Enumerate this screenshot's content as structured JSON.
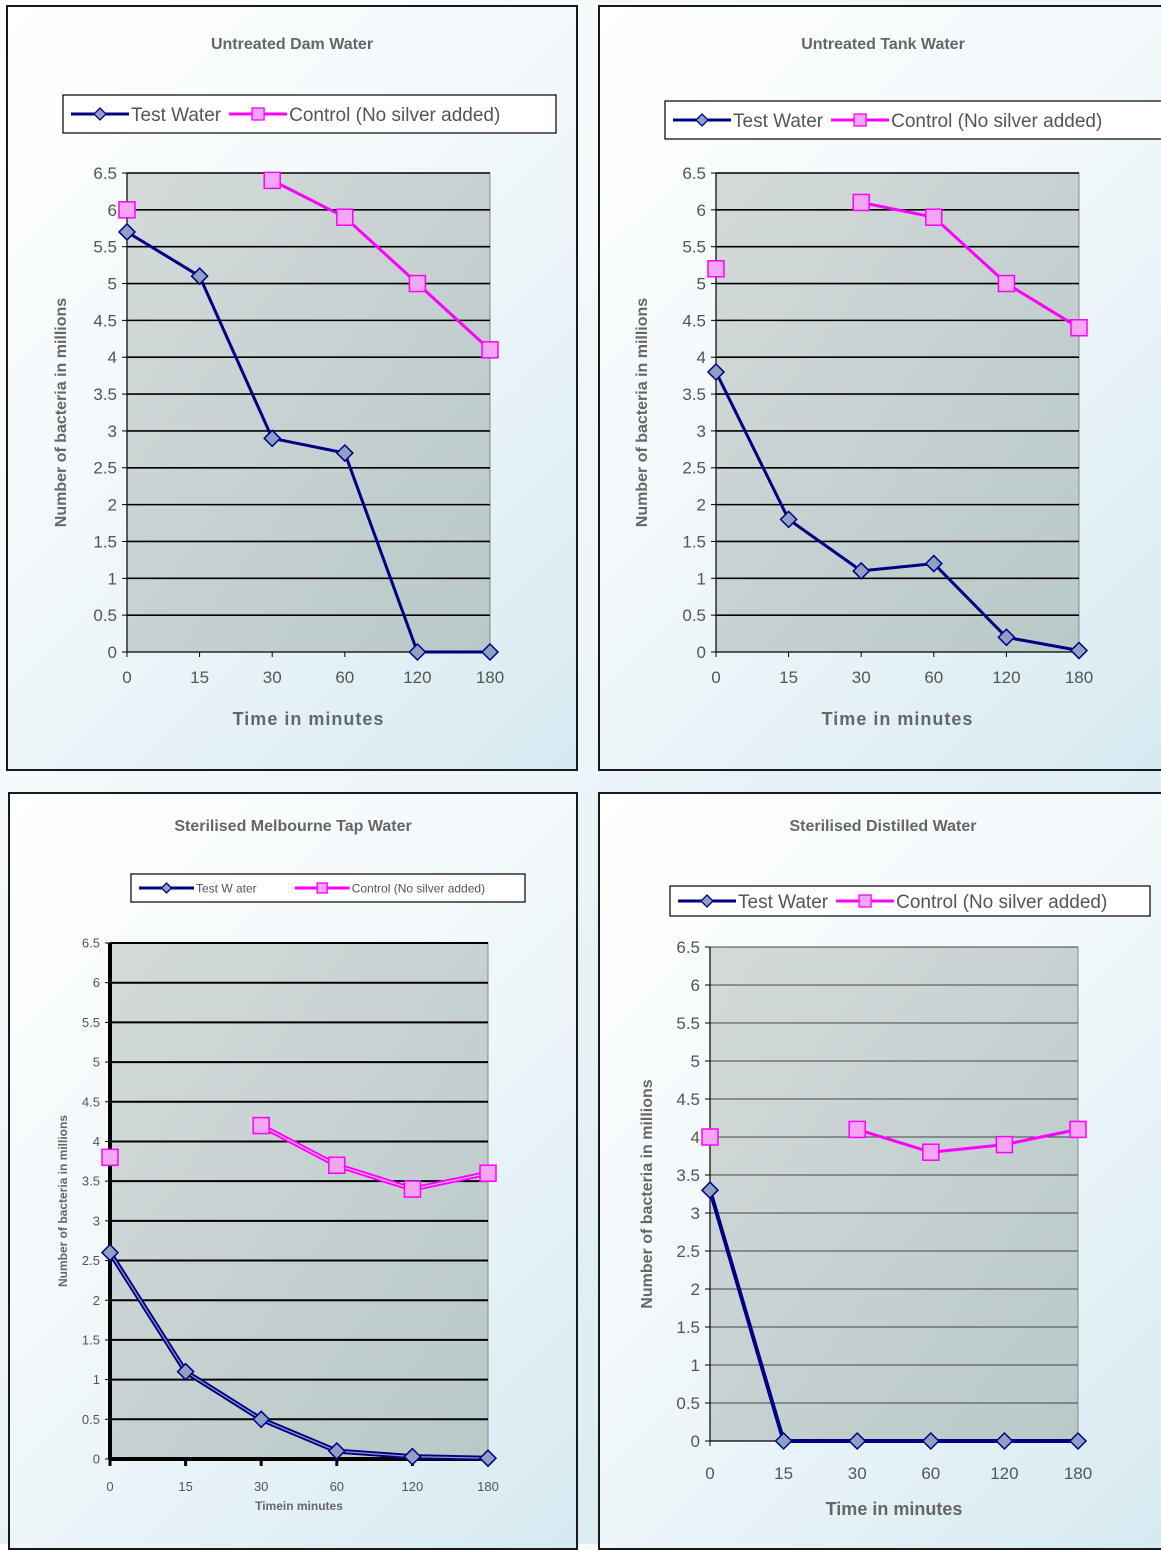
{
  "chart_data": [
    {
      "type": "line",
      "title": "Untreated Dam Water",
      "xlabel": "Time in minutes",
      "ylabel": "Number of bacteria in millions",
      "categories": [
        "0",
        "15",
        "30",
        "60",
        "120",
        "180"
      ],
      "ylim": [
        0,
        6.5
      ],
      "yticks": [
        "0",
        "0.5",
        "1",
        "1.5",
        "2",
        "2.5",
        "3",
        "3.5",
        "4",
        "4.5",
        "5",
        "5.5",
        "6",
        "6.5"
      ],
      "legend": "top",
      "grid": true,
      "series": [
        {
          "name": "Test Water",
          "marker": "diamond",
          "color": "#000080",
          "values": [
            5.7,
            5.1,
            2.9,
            2.7,
            0,
            0
          ]
        },
        {
          "name": "Control (No silver added)",
          "marker": "square",
          "color": "#ff00ff",
          "values": [
            6.0,
            null,
            6.4,
            5.9,
            5.0,
            4.1
          ]
        }
      ]
    },
    {
      "type": "line",
      "title": "Untreated Tank Water",
      "xlabel": "Time in minutes",
      "ylabel": "Number of bacteria in millions",
      "categories": [
        "0",
        "15",
        "30",
        "60",
        "120",
        "180"
      ],
      "ylim": [
        0,
        6.5
      ],
      "yticks": [
        "0",
        "0.5",
        "1",
        "1.5",
        "2",
        "2.5",
        "3",
        "3.5",
        "4",
        "4.5",
        "5",
        "5.5",
        "6",
        "6.5"
      ],
      "legend": "top",
      "grid": true,
      "series": [
        {
          "name": "Test Water",
          "marker": "diamond",
          "color": "#000080",
          "values": [
            3.8,
            1.8,
            1.1,
            1.2,
            0.2,
            0.02
          ]
        },
        {
          "name": "Control (No silver added)",
          "marker": "square",
          "color": "#ff00ff",
          "values": [
            5.2,
            null,
            6.1,
            5.9,
            5.0,
            4.4
          ]
        }
      ]
    },
    {
      "type": "line",
      "title": "Sterilised Melbourne Tap Water",
      "xlabel": "Timein minutes",
      "ylabel": "Number of bacteria in millions",
      "categories": [
        "0",
        "15",
        "30",
        "60",
        "120",
        "180"
      ],
      "ylim": [
        0,
        6.5
      ],
      "yticks": [
        "0",
        "0.5",
        "1",
        "1.5",
        "2",
        "2.5",
        "3",
        "3.5",
        "4",
        "4.5",
        "5",
        "5.5",
        "6",
        "6.5"
      ],
      "legend": "top",
      "grid": true,
      "series": [
        {
          "name": "Test W ater",
          "marker": "diamond",
          "color": "#000080",
          "values": [
            2.6,
            1.1,
            0.5,
            0.1,
            0.03,
            0.01
          ]
        },
        {
          "name": "Control (No silver added)",
          "marker": "square",
          "color": "#ff00ff",
          "values": [
            3.8,
            null,
            4.2,
            3.7,
            3.4,
            3.6
          ]
        }
      ]
    },
    {
      "type": "line",
      "title": "Sterilised Distilled Water",
      "xlabel": "Time in minutes",
      "ylabel": "Number of bacteria in millions",
      "categories": [
        "0",
        "15",
        "30",
        "60",
        "120",
        "180"
      ],
      "ylim": [
        0,
        6.5
      ],
      "yticks": [
        "0",
        "0.5",
        "1",
        "1.5",
        "2",
        "2.5",
        "3",
        "3.5",
        "4",
        "4.5",
        "5",
        "5.5",
        "6",
        "6.5"
      ],
      "legend": "top",
      "grid": true,
      "series": [
        {
          "name": "Test Water",
          "marker": "diamond",
          "color": "#000080",
          "values": [
            3.3,
            0,
            0,
            0,
            0,
            0
          ]
        },
        {
          "name": "Control (No silver added)",
          "marker": "square",
          "color": "#ff00ff",
          "values": [
            4.0,
            null,
            4.1,
            3.8,
            3.9,
            4.1
          ]
        }
      ]
    }
  ]
}
